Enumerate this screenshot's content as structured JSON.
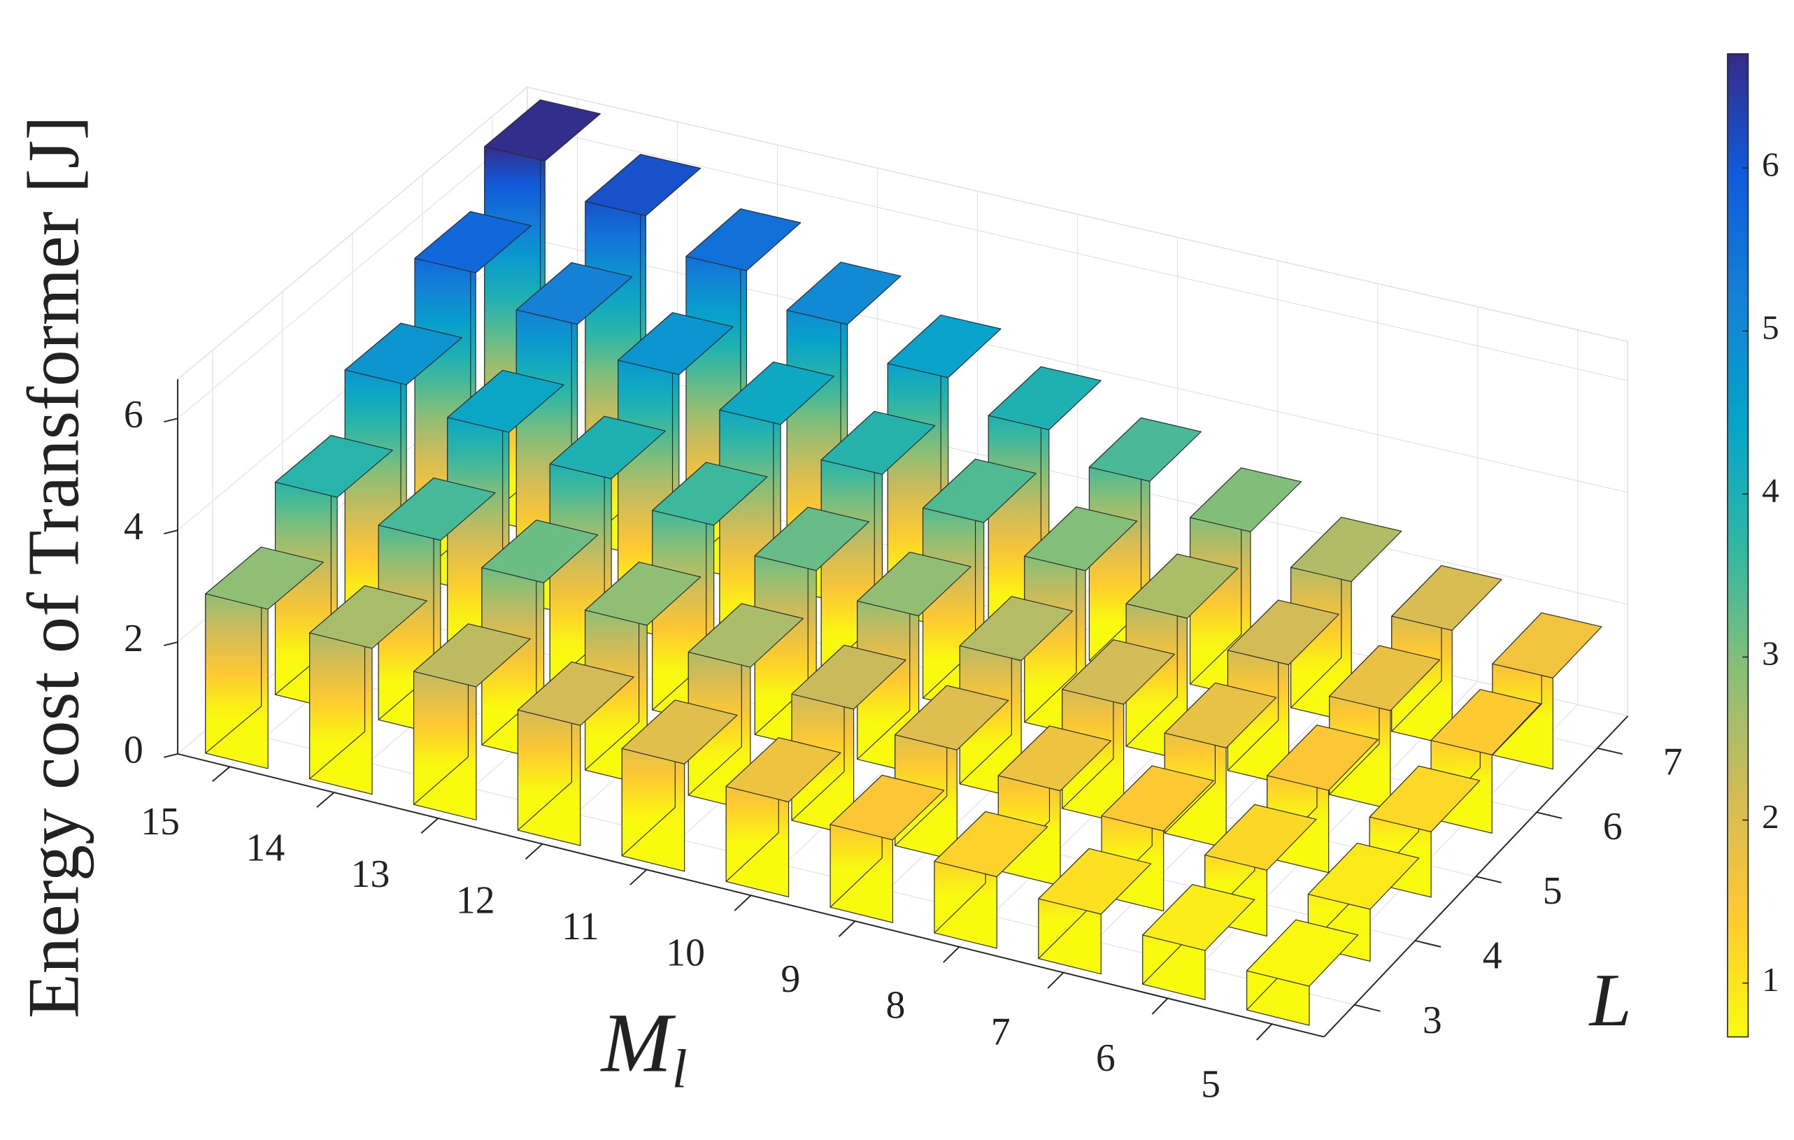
{
  "chart_data": {
    "type": "bar3d",
    "x": [
      5,
      6,
      7,
      8,
      9,
      10,
      11,
      12,
      13,
      14,
      15
    ],
    "y": [
      3,
      4,
      5,
      6,
      7
    ],
    "values": [
      [
        0.7,
        0.88,
        1.07,
        1.28,
        1.48,
        1.7,
        1.92,
        2.15,
        2.38,
        2.61,
        2.85
      ],
      [
        0.93,
        1.18,
        1.43,
        1.7,
        1.98,
        2.26,
        2.56,
        2.86,
        3.17,
        3.48,
        3.8
      ],
      [
        1.17,
        1.47,
        1.79,
        2.13,
        2.47,
        2.83,
        3.2,
        3.57,
        3.96,
        4.35,
        4.76
      ],
      [
        1.4,
        1.76,
        2.15,
        2.55,
        2.97,
        3.4,
        3.83,
        4.29,
        4.75,
        5.22,
        5.71
      ],
      [
        1.63,
        2.06,
        2.51,
        2.98,
        3.46,
        3.96,
        4.47,
        5.0,
        5.54,
        6.1,
        6.66
      ]
    ],
    "xlabel": {
      "base": "M",
      "sub": "l"
    },
    "ylabel": "L",
    "zlabel": "Energy cost of Transformer [J]",
    "zlim": [
      0,
      6.7
    ],
    "zticks": [
      0,
      2,
      4,
      6
    ],
    "clim": [
      0.67,
      6.7
    ],
    "cticks": [
      1,
      2,
      3,
      4,
      5,
      6
    ],
    "colormap": [
      "#f9fb0e",
      "#fec832",
      "#d1bb59",
      "#87bf77",
      "#2eb7a4",
      "#06a4ca",
      "#1481d6",
      "#0f5cdd",
      "#352a87"
    ],
    "grid": true,
    "colorbar": true
  }
}
